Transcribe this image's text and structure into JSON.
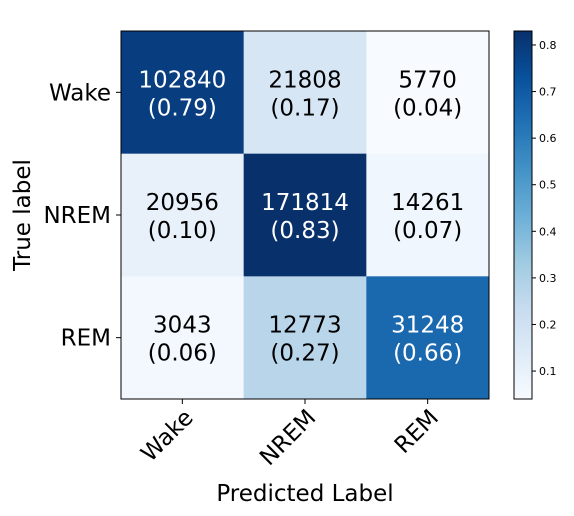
{
  "chart_data": {
    "type": "heatmap",
    "title": "",
    "xlabel": "Predicted Label",
    "ylabel": "True label",
    "x_categories": [
      "Wake",
      "NREM",
      "REM"
    ],
    "y_categories": [
      "Wake",
      "NREM",
      "REM"
    ],
    "counts": [
      [
        102840,
        21808,
        5770
      ],
      [
        20956,
        171814,
        14261
      ],
      [
        3043,
        12773,
        31248
      ]
    ],
    "proportions": [
      [
        "(0.79)",
        "(0.17)",
        "(0.04)"
      ],
      [
        "(0.10)",
        "(0.83)",
        "(0.07)"
      ],
      [
        "(0.06)",
        "(0.27)",
        "(0.66)"
      ]
    ],
    "values": [
      [
        0.79,
        0.17,
        0.04
      ],
      [
        0.1,
        0.83,
        0.07
      ],
      [
        0.06,
        0.27,
        0.66
      ]
    ],
    "colormap": "Blues",
    "colorbar": {
      "range": [
        0.04,
        0.83
      ],
      "ticks": [
        "0.1",
        "0.2",
        "0.3",
        "0.4",
        "0.5",
        "0.6",
        "0.7",
        "0.8"
      ]
    },
    "text_colors": {
      "dark": "#000000",
      "light": "#ffffff"
    }
  }
}
